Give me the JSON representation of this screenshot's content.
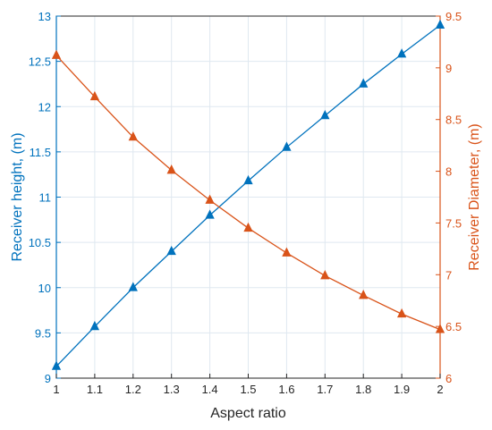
{
  "chart_data": {
    "type": "line",
    "title": "",
    "xlabel": "Aspect ratio",
    "ylabel_left": "Receiver height, (m)",
    "ylabel_right": "Receiver Diameter, (m)",
    "xlim": [
      1,
      2
    ],
    "ylim_left": [
      9,
      13
    ],
    "ylim_right": [
      6,
      9.5
    ],
    "grid": true,
    "x": [
      1,
      1.1,
      1.2,
      1.3,
      1.4,
      1.5,
      1.6,
      1.7,
      1.8,
      1.9,
      2
    ],
    "x_ticks": [
      "1",
      "1.1",
      "1.2",
      "1.3",
      "1.4",
      "1.5",
      "1.6",
      "1.7",
      "1.8",
      "1.9",
      "2"
    ],
    "y_left_ticks": [
      "9",
      "9.5",
      "10",
      "10.5",
      "11",
      "11.5",
      "12",
      "12.5",
      "13"
    ],
    "y_right_ticks": [
      "6",
      "6.5",
      "7",
      "7.5",
      "8",
      "8.5",
      "9",
      "9.5"
    ],
    "series": [
      {
        "axis": "left",
        "color": "#0072BD",
        "values": [
          9.13,
          9.57,
          10.0,
          10.4,
          10.8,
          11.18,
          11.55,
          11.9,
          12.25,
          12.58,
          12.9
        ]
      },
      {
        "axis": "right",
        "color": "#D95319",
        "values": [
          9.12,
          8.72,
          8.33,
          8.01,
          7.72,
          7.45,
          7.21,
          6.99,
          6.8,
          6.62,
          6.47
        ]
      }
    ]
  }
}
